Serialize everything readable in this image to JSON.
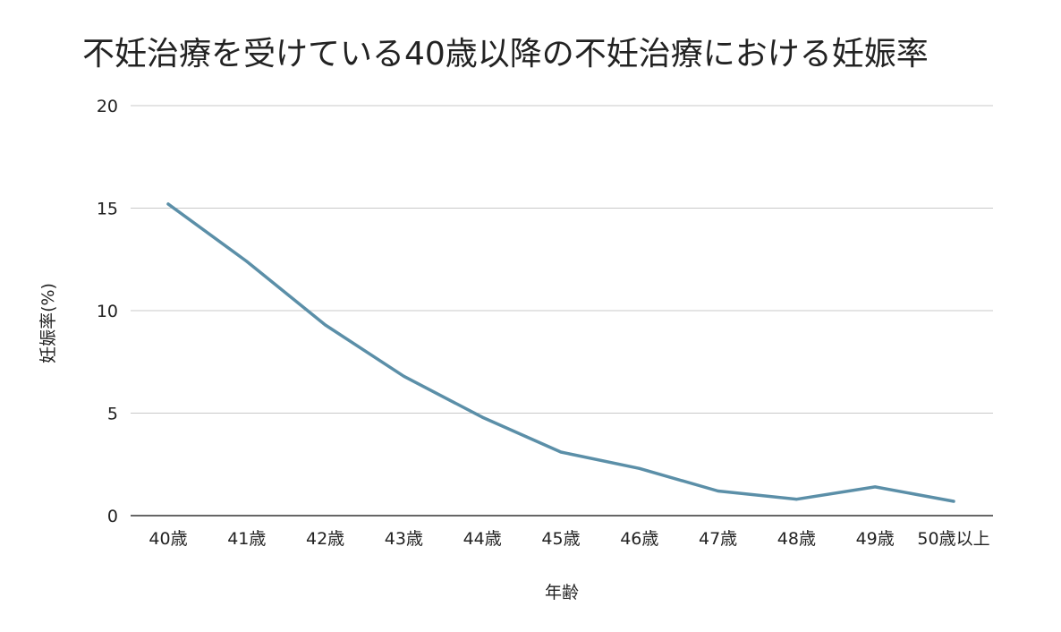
{
  "chart_data": {
    "type": "line",
    "title": "不妊治療を受けている40歳以降の不妊治療における妊娠率",
    "xlabel": "年齢",
    "ylabel": "妊娠率(%)",
    "categories": [
      "40歳",
      "41歳",
      "42歳",
      "43歳",
      "44歳",
      "45歳",
      "46歳",
      "47歳",
      "48歳",
      "49歳",
      "50歳以上"
    ],
    "series": [
      {
        "values": [
          15.2,
          12.4,
          9.3,
          6.8,
          4.8,
          3.1,
          2.3,
          1.2,
          0.8,
          1.4,
          0.7
        ]
      }
    ],
    "ylim": [
      0,
      20
    ],
    "yticks": [
      0,
      5,
      10,
      15,
      20
    ],
    "grid": true,
    "line_color": "#5b8fa8"
  }
}
